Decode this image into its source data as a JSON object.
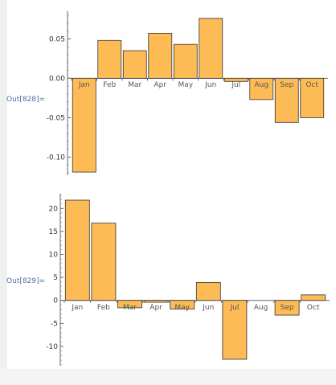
{
  "cells": [
    {
      "label": "Out[828]="
    },
    {
      "label": "Out[829]="
    }
  ],
  "chart_data": [
    {
      "type": "bar",
      "categories": [
        "Jan",
        "Feb",
        "Mar",
        "Apr",
        "May",
        "Jun",
        "Jul",
        "Aug",
        "Sep",
        "Oct"
      ],
      "values": [
        -0.119,
        0.048,
        0.035,
        0.057,
        0.043,
        0.076,
        -0.004,
        -0.027,
        -0.056,
        -0.05
      ],
      "yticks": [
        0.05,
        0.0,
        -0.05,
        -0.1
      ],
      "ytick_labels": [
        "0.05",
        "0.00",
        "-0.05",
        "-0.10"
      ],
      "ylim": [
        -0.123,
        0.085
      ],
      "bar_color": "#fdbb55"
    },
    {
      "type": "bar",
      "categories": [
        "Jan",
        "Feb",
        "Mar",
        "Apr",
        "May",
        "Jun",
        "Jul",
        "Aug",
        "Sep",
        "Oct"
      ],
      "values": [
        21.8,
        16.8,
        -1.6,
        -0.4,
        -1.9,
        3.9,
        -12.8,
        0,
        -3.2,
        1.2
      ],
      "yticks": [
        20,
        15,
        10,
        5,
        0,
        -5,
        -10
      ],
      "ytick_labels": [
        "20",
        "15",
        "10",
        "5",
        "0",
        "-5",
        "-10"
      ],
      "ylim": [
        -14.2,
        23.2
      ],
      "bar_color": "#fdbb55"
    }
  ]
}
